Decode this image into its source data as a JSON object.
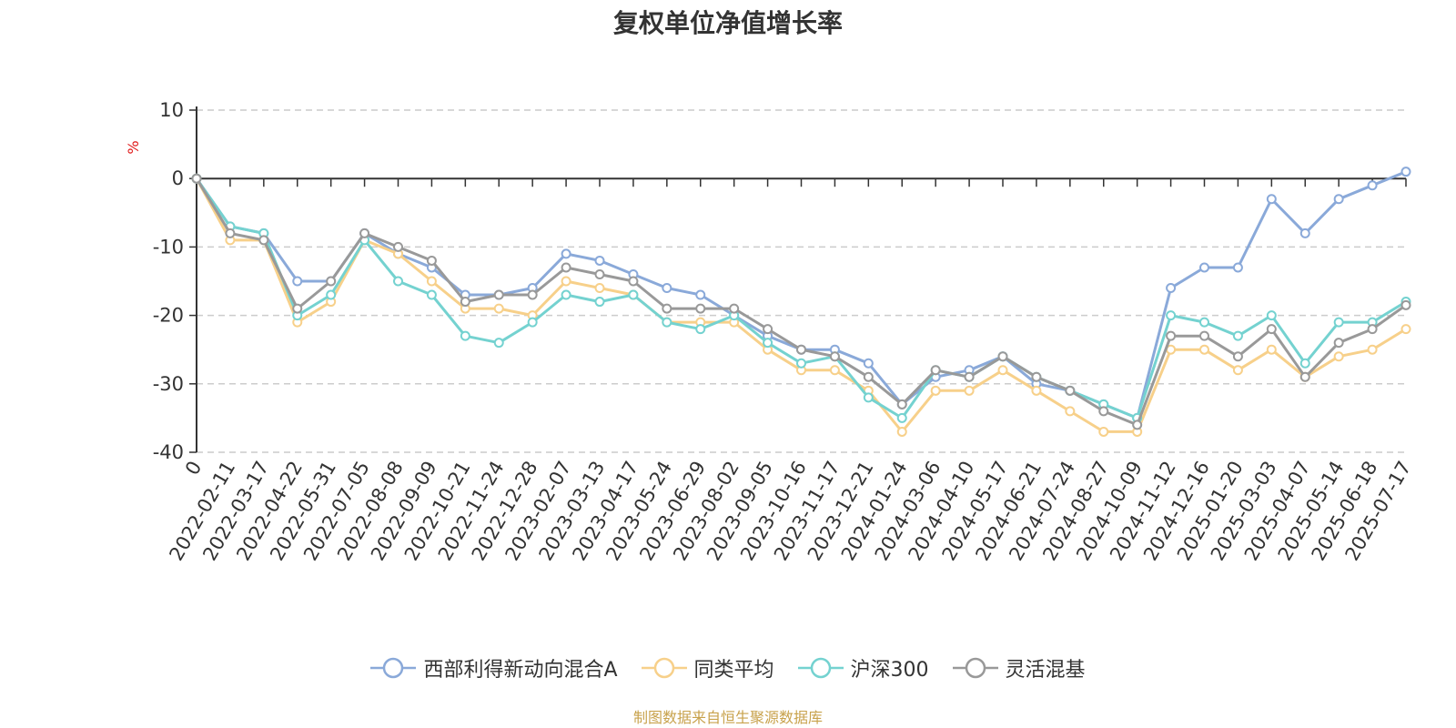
{
  "chart_data": {
    "type": "line",
    "title": "复权单位净值增长率",
    "ylabel": "%",
    "ylim": [
      -40,
      10
    ],
    "yticks": [
      10,
      0,
      -10,
      -20,
      -30,
      -40
    ],
    "grid": true,
    "legend_position": "bottom",
    "x_labels": [
      "0",
      "2022-02-11",
      "2022-03-17",
      "2022-04-22",
      "2022-05-31",
      "2022-07-05",
      "2022-08-08",
      "2022-09-09",
      "2022-10-21",
      "2022-11-24",
      "2022-12-28",
      "2023-02-07",
      "2023-03-13",
      "2023-04-17",
      "2023-05-24",
      "2023-06-29",
      "2023-08-02",
      "2023-09-05",
      "2023-10-16",
      "2023-11-17",
      "2023-12-21",
      "2024-01-24",
      "2024-03-06",
      "2024-04-10",
      "2024-05-17",
      "2024-06-21",
      "2024-07-24",
      "2024-08-27",
      "2024-10-09",
      "2024-11-12",
      "2024-12-16",
      "2025-01-20",
      "2025-03-03",
      "2025-04-07",
      "2025-05-14",
      "2025-06-18",
      "2025-07-17"
    ],
    "series": [
      {
        "name": "西部利得新动向混合A",
        "color": "#8aa9d9",
        "values": [
          0,
          -7,
          -8,
          -15,
          -15,
          -8,
          -11,
          -13,
          -17,
          -17,
          -16,
          -11,
          -12,
          -14,
          -16,
          -17,
          -20,
          -23,
          -25,
          -25,
          -27,
          -33,
          -29,
          -28,
          -26,
          -30,
          -31,
          -33,
          -35,
          -16,
          -13,
          -13,
          -3,
          -8,
          -3,
          -1,
          1
        ]
      },
      {
        "name": "同类平均",
        "color": "#f7d08a",
        "values": [
          0,
          -9,
          -9,
          -21,
          -18,
          -9,
          -11,
          -15,
          -19,
          -19,
          -20,
          -15,
          -16,
          -17,
          -21,
          -21,
          -21,
          -25,
          -28,
          -28,
          -31,
          -37,
          -31,
          -31,
          -28,
          -31,
          -34,
          -37,
          -37,
          -25,
          -25,
          -28,
          -25,
          -29,
          -26,
          -25,
          -22
        ]
      },
      {
        "name": "沪深300",
        "color": "#74d2d0",
        "values": [
          0,
          -7,
          -8,
          -20,
          -17,
          -9,
          -15,
          -17,
          -23,
          -24,
          -21,
          -17,
          -18,
          -17,
          -21,
          -22,
          -20,
          -24,
          -27,
          -26,
          -32,
          -35,
          -28,
          -29,
          -26,
          -29,
          -31,
          -33,
          -35,
          -20,
          -21,
          -23,
          -20,
          -27,
          -21,
          -21,
          -18
        ]
      },
      {
        "name": "灵活混基",
        "color": "#999999",
        "values": [
          0,
          -8,
          -9,
          -19,
          -15,
          -8,
          -10,
          -12,
          -18,
          -17,
          -17,
          -13,
          -14,
          -15,
          -19,
          -19,
          -19,
          -22,
          -25,
          -26,
          -29,
          -33,
          -28,
          -29,
          -26,
          -29,
          -31,
          -34,
          -36,
          -23,
          -23,
          -26,
          -22,
          -29,
          -24,
          -22,
          -18.5
        ]
      }
    ]
  },
  "footer": "制图数据来自恒生聚源数据库"
}
